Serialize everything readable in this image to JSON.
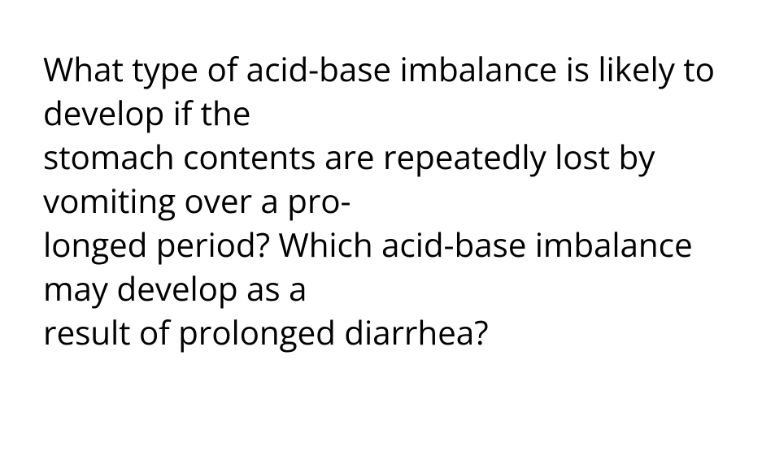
{
  "document": {
    "lines": [
      "What type of acid-base imbalance is likely to develop if the",
      "stomach contents are repeatedly lost by vomiting over a pro-",
      "longed period? Which acid-base imbalance may develop as a",
      "result of prolonged diarrhea?"
    ],
    "text_color": "#000000",
    "background_color": "#ffffff",
    "font_size": 40.5,
    "font_weight": 400
  }
}
